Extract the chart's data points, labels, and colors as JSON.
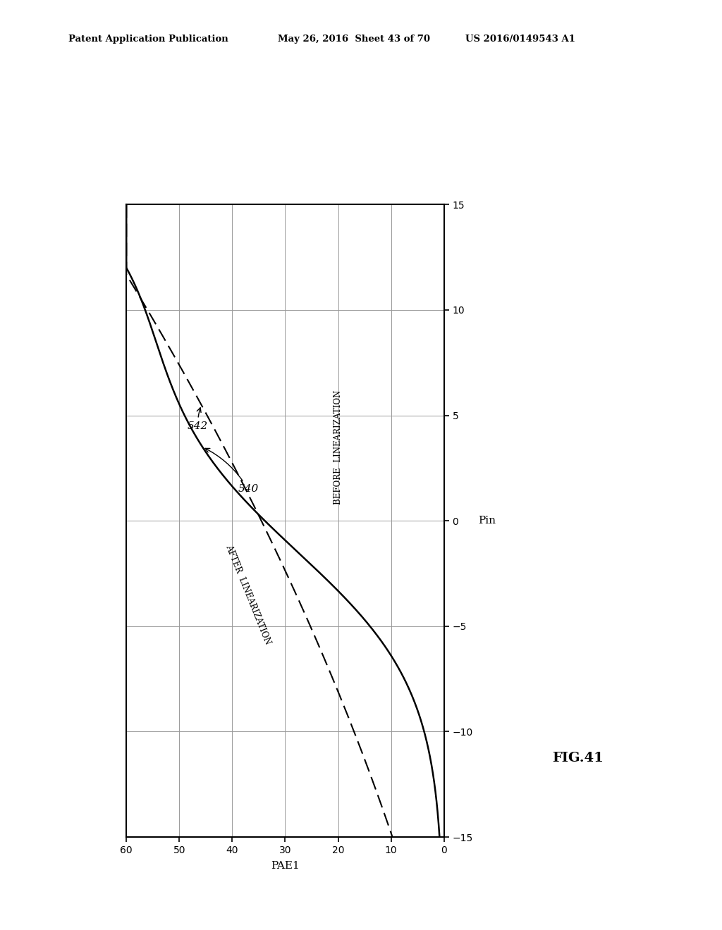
{
  "title": "FIG.41",
  "xlabel": "PAE1",
  "ylabel": "Pin",
  "xlim": [
    60,
    0
  ],
  "ylim": [
    -15,
    15
  ],
  "xticks": [
    60,
    50,
    40,
    30,
    20,
    10,
    0
  ],
  "yticks": [
    -15,
    -10,
    -5,
    0,
    5,
    10,
    15
  ],
  "header_left": "Patent Application Publication",
  "header_center": "May 26, 2016  Sheet 43 of 70",
  "header_right": "US 2016/0149543 A1",
  "background_color": "#ffffff",
  "line_color": "#000000",
  "grid_color": "#999999",
  "fig_label": "FIG.41",
  "before_label": "BEFORE  LINEARIZATION",
  "after_label": "AFTER  LINEARIZATION",
  "label_540": "540",
  "label_542": "542"
}
